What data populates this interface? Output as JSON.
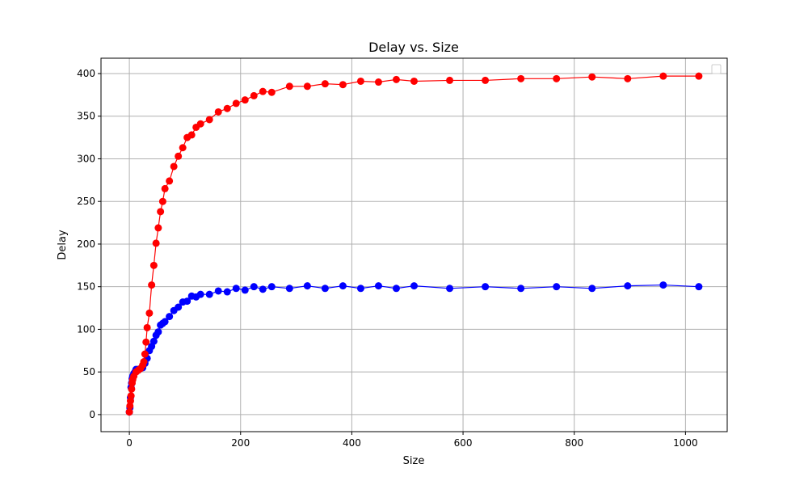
{
  "chart_data": {
    "type": "line",
    "title": "Delay vs. Size",
    "xlabel": "Size",
    "ylabel": "Delay",
    "xlim": [
      -51,
      1075
    ],
    "ylim": [
      -20,
      418
    ],
    "xticks": [
      0,
      200,
      400,
      600,
      800,
      1000
    ],
    "yticks": [
      0,
      50,
      100,
      150,
      200,
      250,
      300,
      350,
      400
    ],
    "grid": true,
    "legend": "top-right",
    "series": [
      {
        "color": "#0000ff",
        "marker": "circle",
        "points": [
          [
            0,
            3
          ],
          [
            1,
            8
          ],
          [
            2,
            20
          ],
          [
            3,
            32
          ],
          [
            4,
            37
          ],
          [
            5,
            42
          ],
          [
            6,
            45
          ],
          [
            8,
            48
          ],
          [
            10,
            50
          ],
          [
            12,
            53
          ],
          [
            16,
            53
          ],
          [
            20,
            54
          ],
          [
            24,
            55
          ],
          [
            28,
            60
          ],
          [
            32,
            66
          ],
          [
            36,
            75
          ],
          [
            40,
            80
          ],
          [
            44,
            86
          ],
          [
            48,
            93
          ],
          [
            52,
            97
          ],
          [
            56,
            105
          ],
          [
            60,
            107
          ],
          [
            64,
            109
          ],
          [
            72,
            115
          ],
          [
            80,
            122
          ],
          [
            88,
            126
          ],
          [
            96,
            132
          ],
          [
            104,
            133
          ],
          [
            112,
            139
          ],
          [
            120,
            138
          ],
          [
            128,
            141
          ],
          [
            144,
            141
          ],
          [
            160,
            145
          ],
          [
            176,
            144
          ],
          [
            192,
            148
          ],
          [
            208,
            146
          ],
          [
            224,
            150
          ],
          [
            240,
            147
          ],
          [
            256,
            150
          ],
          [
            288,
            148
          ],
          [
            320,
            151
          ],
          [
            352,
            148
          ],
          [
            384,
            151
          ],
          [
            416,
            148
          ],
          [
            448,
            151
          ],
          [
            480,
            148
          ],
          [
            512,
            151
          ],
          [
            576,
            148
          ],
          [
            640,
            150
          ],
          [
            704,
            148
          ],
          [
            768,
            150
          ],
          [
            832,
            148
          ],
          [
            896,
            151
          ],
          [
            960,
            152
          ],
          [
            1024,
            150
          ]
        ]
      },
      {
        "color": "#ff0000",
        "marker": "circle",
        "points": [
          [
            0,
            3
          ],
          [
            1,
            10
          ],
          [
            2,
            16
          ],
          [
            3,
            22
          ],
          [
            4,
            30
          ],
          [
            5,
            37
          ],
          [
            6,
            41
          ],
          [
            8,
            45
          ],
          [
            12,
            50
          ],
          [
            16,
            52
          ],
          [
            20,
            54
          ],
          [
            24,
            58
          ],
          [
            26,
            62
          ],
          [
            28,
            71
          ],
          [
            30,
            85
          ],
          [
            32,
            102
          ],
          [
            36,
            119
          ],
          [
            40,
            152
          ],
          [
            44,
            175
          ],
          [
            48,
            201
          ],
          [
            52,
            219
          ],
          [
            56,
            238
          ],
          [
            60,
            250
          ],
          [
            64,
            265
          ],
          [
            72,
            274
          ],
          [
            80,
            291
          ],
          [
            88,
            303
          ],
          [
            96,
            313
          ],
          [
            104,
            325
          ],
          [
            112,
            328
          ],
          [
            120,
            337
          ],
          [
            128,
            341
          ],
          [
            144,
            346
          ],
          [
            160,
            355
          ],
          [
            176,
            359
          ],
          [
            192,
            365
          ],
          [
            208,
            369
          ],
          [
            224,
            374
          ],
          [
            240,
            379
          ],
          [
            256,
            378
          ],
          [
            288,
            385
          ],
          [
            320,
            385
          ],
          [
            352,
            388
          ],
          [
            384,
            387
          ],
          [
            416,
            391
          ],
          [
            448,
            390
          ],
          [
            480,
            393
          ],
          [
            512,
            391
          ],
          [
            576,
            392
          ],
          [
            640,
            392
          ],
          [
            704,
            394
          ],
          [
            768,
            394
          ],
          [
            832,
            396
          ],
          [
            896,
            394
          ],
          [
            960,
            397
          ],
          [
            1024,
            397
          ]
        ]
      }
    ]
  }
}
